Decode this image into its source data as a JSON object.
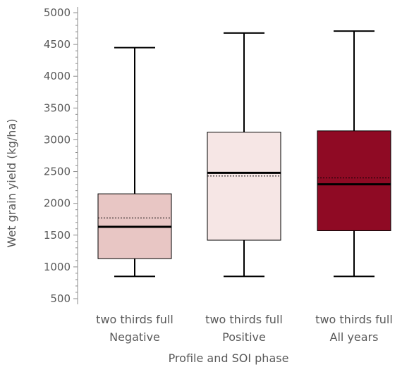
{
  "chart_data": {
    "type": "boxplot",
    "title": "",
    "xlabel": "Profile and SOI phase",
    "ylabel": "Wet grain yield (kg/ha)",
    "ylim": [
      500,
      5000
    ],
    "yticks": [
      500,
      1000,
      1500,
      2000,
      2500,
      3000,
      3500,
      4000,
      4500,
      5000
    ],
    "grid": false,
    "categories": [
      {
        "line1": "two thirds full",
        "line2": "Negative"
      },
      {
        "line1": "two thirds full",
        "line2": "Positive"
      },
      {
        "line1": "two thirds full",
        "line2": "All years"
      }
    ],
    "boxes": [
      {
        "min": 850,
        "q1": 1130,
        "median": 1630,
        "mean": 1770,
        "q3": 2150,
        "max": 4450,
        "color": "#e8c6c4"
      },
      {
        "min": 850,
        "q1": 1420,
        "median": 2480,
        "mean": 2430,
        "q3": 3120,
        "max": 4680,
        "color": "#f6e6e5"
      },
      {
        "min": 850,
        "q1": 1570,
        "median": 2300,
        "mean": 2400,
        "q3": 3140,
        "max": 4710,
        "color": "#8f0a24"
      }
    ]
  }
}
